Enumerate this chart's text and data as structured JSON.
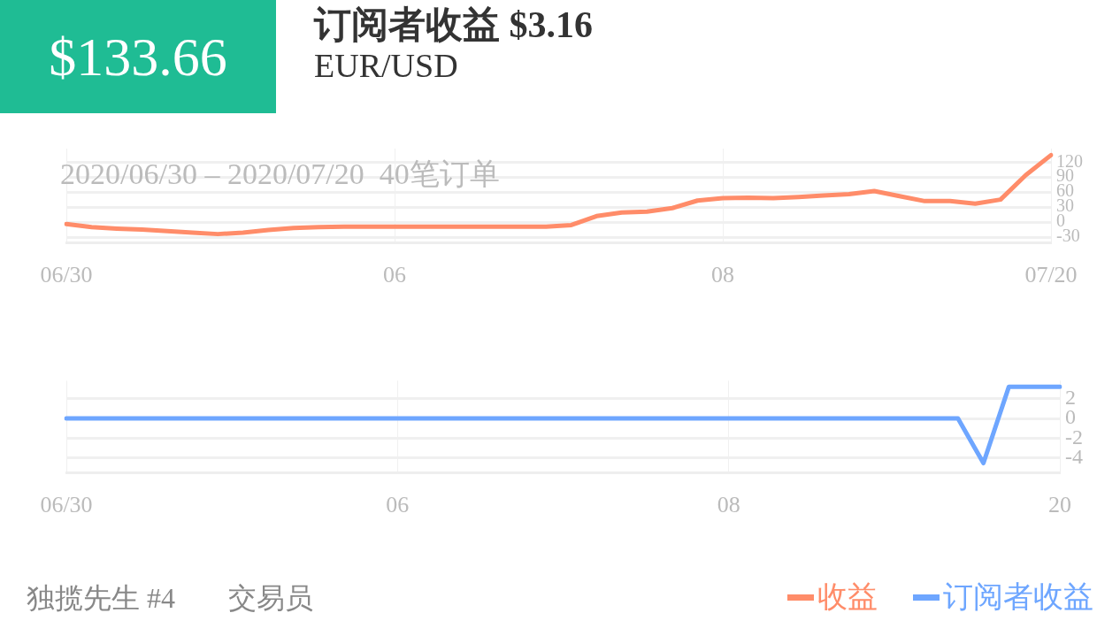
{
  "chart_data": [
    {
      "type": "line",
      "title": "订阅者收益 $3.16",
      "subtitle": "EUR/USD",
      "annotations": [
        "$133.66",
        "2020/06/30 – 2020/07/20  40笔订单",
        "独揽先生 #4",
        "交易员"
      ],
      "categories": [
        "06/30",
        null,
        null,
        null,
        null,
        null,
        null,
        null,
        null,
        null,
        null,
        null,
        null,
        "06",
        null,
        null,
        null,
        null,
        null,
        null,
        null,
        null,
        null,
        null,
        null,
        null,
        "08",
        null,
        null,
        null,
        null,
        null,
        null,
        null,
        null,
        null,
        null,
        null,
        null,
        "07/20"
      ],
      "series": [
        {
          "name": "收益",
          "color": "#ff8c69",
          "values": [
            -4,
            -10,
            -13,
            -15,
            -18,
            -21,
            -24,
            -21,
            -16,
            -12,
            -10,
            -9,
            -9,
            -9,
            -9,
            -9,
            -9,
            -9,
            -9,
            -9,
            -6,
            12,
            19,
            21,
            28,
            43,
            48,
            49,
            48,
            50,
            53,
            56,
            62,
            52,
            42,
            42,
            37,
            45,
            94,
            134
          ]
        }
      ],
      "ylim": [
        -42,
        147
      ],
      "yticks": [
        -30,
        0,
        30,
        60,
        90,
        120
      ],
      "grid": true,
      "legend": "bottom right",
      "marker": "none",
      "line_style": "solid"
    },
    {
      "type": "line",
      "categories": [
        "06/30",
        null,
        null,
        null,
        null,
        null,
        null,
        null,
        null,
        null,
        null,
        null,
        null,
        "06",
        null,
        null,
        null,
        null,
        null,
        null,
        null,
        null,
        null,
        null,
        null,
        null,
        "08",
        null,
        null,
        null,
        null,
        null,
        null,
        null,
        null,
        null,
        null,
        null,
        null,
        "20"
      ],
      "series": [
        {
          "name": "订阅者收益",
          "color": "#6ea6ff",
          "values": [
            0,
            0,
            0,
            0,
            0,
            0,
            0,
            0,
            0,
            0,
            0,
            0,
            0,
            0,
            0,
            0,
            0,
            0,
            0,
            0,
            0,
            0,
            0,
            0,
            0,
            0,
            0,
            0,
            0,
            0,
            0,
            0,
            0,
            0,
            0,
            0,
            -4.5,
            3.2,
            3.2,
            3.2
          ]
        }
      ],
      "ylim": [
        -5.5,
        3.8
      ],
      "yticks": [
        -4,
        -2,
        0,
        2
      ],
      "grid": true,
      "legend": "bottom right",
      "marker": "none",
      "line_style": "solid"
    }
  ]
}
